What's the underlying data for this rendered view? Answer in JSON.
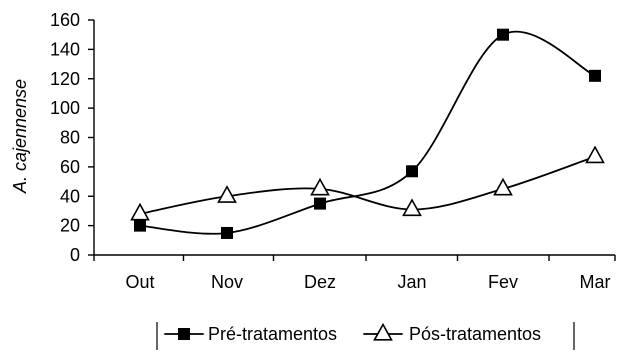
{
  "chart_data": {
    "type": "line",
    "title": "",
    "xlabel": "",
    "ylabel": "A. cajennense",
    "categories": [
      "Out",
      "Nov",
      "Dez",
      "Jan",
      "Fev",
      "Mar"
    ],
    "ylim": [
      0,
      160
    ],
    "yticks": [
      0,
      20,
      40,
      60,
      80,
      100,
      120,
      140,
      160
    ],
    "grid": false,
    "legend_position": "bottom",
    "smoothed": true,
    "series": [
      {
        "name": "Pré-tratamentos",
        "values": [
          20,
          15,
          35,
          57,
          150,
          122
        ],
        "marker": "filled-square",
        "color": "#000000"
      },
      {
        "name": "Pós-tratamentos",
        "values": [
          28,
          40,
          45,
          31,
          45,
          67
        ],
        "marker": "open-triangle",
        "color": "#000000"
      }
    ]
  }
}
